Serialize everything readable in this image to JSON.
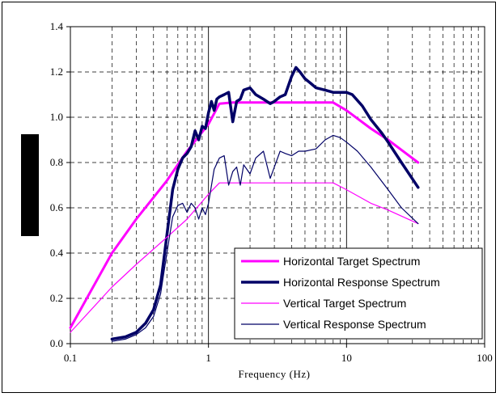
{
  "chart_data": {
    "type": "line",
    "title": "",
    "xlabel": "Frequency (Hz)",
    "ylabel": "",
    "x_scale": "log",
    "xlim": [
      0.1,
      100
    ],
    "ylim": [
      0,
      1.4
    ],
    "x_ticks": [
      "0.1",
      "1",
      "10",
      "100"
    ],
    "y_ticks": [
      "0.0",
      "0.2",
      "0.4",
      "0.6",
      "0.8",
      "1.0",
      "1.2",
      "1.4"
    ],
    "grid": "dashed",
    "legend_position": "bottom-right",
    "series": [
      {
        "name": "Horizontal Target Spectrum",
        "color": "#ff00ff",
        "width": 3,
        "x": [
          0.1,
          0.2,
          0.3,
          0.5,
          0.7,
          1.0,
          1.2,
          1.5,
          3,
          5,
          8,
          10,
          15,
          20,
          33
        ],
        "y": [
          0.07,
          0.4,
          0.55,
          0.72,
          0.85,
          0.97,
          1.06,
          1.065,
          1.065,
          1.065,
          1.065,
          1.03,
          0.95,
          0.9,
          0.8
        ]
      },
      {
        "name": "Horizontal Response Spectrum",
        "color": "#000066",
        "width": 3.5,
        "x": [
          0.2,
          0.25,
          0.3,
          0.35,
          0.4,
          0.45,
          0.5,
          0.55,
          0.6,
          0.65,
          0.7,
          0.75,
          0.8,
          0.85,
          0.9,
          0.95,
          1.0,
          1.05,
          1.1,
          1.15,
          1.2,
          1.3,
          1.4,
          1.5,
          1.6,
          1.7,
          1.8,
          2.0,
          2.2,
          2.5,
          2.8,
          3.0,
          3.3,
          3.6,
          4.0,
          4.3,
          4.6,
          5.0,
          5.5,
          6.0,
          7.0,
          8.0,
          9.0,
          10,
          11,
          13,
          15,
          18,
          20,
          25,
          33
        ],
        "y": [
          0.02,
          0.03,
          0.05,
          0.09,
          0.15,
          0.26,
          0.48,
          0.68,
          0.77,
          0.82,
          0.84,
          0.87,
          0.94,
          0.9,
          0.96,
          0.95,
          1.02,
          1.07,
          1.03,
          1.08,
          1.09,
          1.1,
          1.11,
          0.98,
          1.07,
          1.08,
          1.12,
          1.13,
          1.1,
          1.08,
          1.06,
          1.07,
          1.09,
          1.1,
          1.18,
          1.22,
          1.2,
          1.17,
          1.15,
          1.13,
          1.12,
          1.11,
          1.11,
          1.11,
          1.1,
          1.05,
          0.99,
          0.93,
          0.89,
          0.8,
          0.69
        ]
      },
      {
        "name": "Vertical Target Spectrum",
        "color": "#ff00ff",
        "width": 1.2,
        "x": [
          0.1,
          0.2,
          0.3,
          0.5,
          0.7,
          1.0,
          1.2,
          1.5,
          3,
          5,
          8,
          10,
          15,
          20,
          33
        ],
        "y": [
          0.05,
          0.25,
          0.35,
          0.47,
          0.55,
          0.66,
          0.71,
          0.71,
          0.71,
          0.71,
          0.71,
          0.68,
          0.62,
          0.59,
          0.53
        ]
      },
      {
        "name": "Vertical Response Spectrum",
        "color": "#000066",
        "width": 1.2,
        "x": [
          0.2,
          0.25,
          0.3,
          0.35,
          0.4,
          0.45,
          0.5,
          0.55,
          0.6,
          0.65,
          0.7,
          0.75,
          0.8,
          0.85,
          0.9,
          0.95,
          1.0,
          1.1,
          1.2,
          1.3,
          1.4,
          1.5,
          1.6,
          1.7,
          1.8,
          2.0,
          2.2,
          2.5,
          2.8,
          3.0,
          3.3,
          3.6,
          4.0,
          4.5,
          5.0,
          6.0,
          7.0,
          8.0,
          9.0,
          10,
          12,
          15,
          20,
          25,
          33
        ],
        "y": [
          0.01,
          0.02,
          0.04,
          0.07,
          0.12,
          0.22,
          0.4,
          0.56,
          0.61,
          0.62,
          0.58,
          0.62,
          0.6,
          0.55,
          0.6,
          0.57,
          0.62,
          0.77,
          0.82,
          0.83,
          0.7,
          0.76,
          0.78,
          0.7,
          0.79,
          0.75,
          0.82,
          0.85,
          0.73,
          0.78,
          0.85,
          0.84,
          0.83,
          0.85,
          0.85,
          0.86,
          0.9,
          0.92,
          0.91,
          0.89,
          0.85,
          0.78,
          0.68,
          0.6,
          0.53
        ]
      }
    ]
  }
}
